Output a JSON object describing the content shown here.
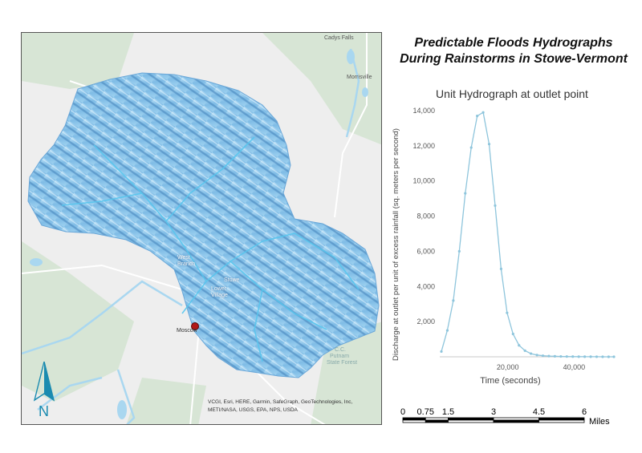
{
  "title": {
    "line1": "Predictable Floods Hydrographs",
    "line2": "During Rainstorms in Stowe-Vermont"
  },
  "map": {
    "places": {
      "cadys_falls": "Cadys Falls",
      "morrisville": "Morrisville",
      "west_branch_1": "West",
      "west_branch_2": "Branch",
      "stowe": "Stowe",
      "lower_village_1": "Lower",
      "lower_village_2": "Village",
      "moscow": "Moscow",
      "state_forest_1": "C.C.",
      "state_forest_2": "Putnam",
      "state_forest_3": "State Forest"
    },
    "attribution_line1": "VCGI, Esri, HERE, Garmin, SafeGraph, GeoTechnologies, Inc,",
    "attribution_line2": "METI/NASA, USGS, EPA, NPS, USDA",
    "north_label": "N",
    "colors": {
      "watershed_light": "#9fd2f0",
      "watershed_dark": "#3f7fb8",
      "water": "#a9d7f0",
      "outlet_point": "#b01818",
      "north_arrow": "#1a8bb0"
    }
  },
  "chart_data": {
    "type": "line",
    "title": "Unit Hydrograph at outlet point",
    "xlabel": "Time (seconds)",
    "ylabel": "Discharge at outlet per unit of excess rainfall (sq. meters per second)",
    "x_ticks": [
      20000,
      40000
    ],
    "y_ticks": [
      2000,
      4000,
      6000,
      8000,
      10000,
      12000,
      14000
    ],
    "x_tick_labels": [
      "20,000",
      "40,000"
    ],
    "y_tick_labels": [
      "2,000",
      "4,000",
      "6,000",
      "8,000",
      "10,000",
      "12,000",
      "14,000"
    ],
    "xlim": [
      0,
      52000
    ],
    "ylim": [
      0,
      14000
    ],
    "grid": false,
    "color": "#8ec5dc",
    "series": [
      {
        "x": [
          0,
          1800,
          3600,
          5400,
          7200,
          9000,
          10800,
          12600,
          14400,
          16200,
          18000,
          19800,
          21600,
          23400,
          25200,
          27000,
          28800,
          30600,
          32400,
          34200,
          36000,
          37800,
          39600,
          41400,
          43200,
          45000,
          46800,
          48600,
          50400,
          52000
        ],
        "values": [
          300,
          1500,
          3200,
          6000,
          9300,
          11900,
          13700,
          13900,
          12100,
          8600,
          5000,
          2500,
          1300,
          650,
          350,
          180,
          100,
          60,
          40,
          30,
          20,
          15,
          10,
          8,
          5,
          4,
          3,
          2,
          1,
          1
        ]
      }
    ]
  },
  "scale": {
    "labels": [
      "0",
      "0.75",
      "1.5",
      "3",
      "4.5",
      "6"
    ],
    "values": [
      0,
      0.75,
      1.5,
      3,
      4.5,
      6
    ],
    "unit": "Miles"
  }
}
